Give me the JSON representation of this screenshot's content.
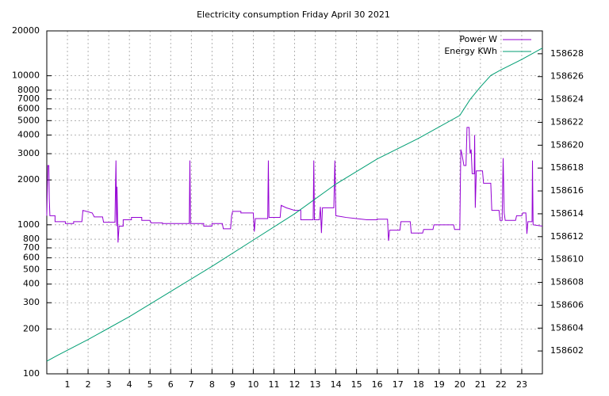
{
  "chart_data": {
    "type": "line",
    "title": "Electricity consumption Friday April 30 2021",
    "xlim": [
      0,
      24
    ],
    "xticks": [
      1,
      2,
      3,
      4,
      5,
      6,
      7,
      8,
      9,
      10,
      11,
      12,
      13,
      14,
      15,
      16,
      17,
      18,
      19,
      20,
      21,
      22,
      23
    ],
    "ylim": [
      100,
      20000
    ],
    "log_y": true,
    "yticks": [
      100,
      200,
      300,
      400,
      500,
      600,
      700,
      800,
      1000,
      2000,
      3000,
      4000,
      5000,
      6000,
      7000,
      8000,
      10000,
      20000
    ],
    "y2lim": [
      158600,
      158630
    ],
    "y2ticks": [
      158602,
      158604,
      158606,
      158608,
      158610,
      158612,
      158614,
      158616,
      158618,
      158620,
      158622,
      158624,
      158626,
      158628
    ],
    "grid": true,
    "legend": "top-right",
    "series": [
      {
        "name": "Power W",
        "color": "#9400d3",
        "x": [
          0,
          0.05,
          0.1,
          0.12,
          0.15,
          0.4,
          0.4,
          0.9,
          0.9,
          1.3,
          1.3,
          1.7,
          1.75,
          2.2,
          2.3,
          2.7,
          2.75,
          3.3,
          3.35,
          3.38,
          3.4,
          3.45,
          3.5,
          3.7,
          3.7,
          4.1,
          4.1,
          4.6,
          4.6,
          5.0,
          5.05,
          5.6,
          5.6,
          6.9,
          6.93,
          6.96,
          7.6,
          7.6,
          8.0,
          8.0,
          8.5,
          8.55,
          8.9,
          8.95,
          9.0,
          9.4,
          9.4,
          10.0,
          10.05,
          10.1,
          10.7,
          10.73,
          10.76,
          11.3,
          11.35,
          11.6,
          12.0,
          12.3,
          12.3,
          12.9,
          12.93,
          12.96,
          13.2,
          13.25,
          13.3,
          13.35,
          13.9,
          13.95,
          14.0,
          14.5,
          15.0,
          15.5,
          16.0,
          16.0,
          16.5,
          16.55,
          16.6,
          17.1,
          17.15,
          17.6,
          17.65,
          18.2,
          18.25,
          18.7,
          18.75,
          19.7,
          19.75,
          20.0,
          20.05,
          20.1,
          20.2,
          20.3,
          20.35,
          20.45,
          20.5,
          20.55,
          20.6,
          20.7,
          20.72,
          20.75,
          20.8,
          21.1,
          21.15,
          21.5,
          21.55,
          21.9,
          21.95,
          22.05,
          22.1,
          22.15,
          22.2,
          22.7,
          22.75,
          23.0,
          23.05,
          23.2,
          23.25,
          23.3,
          23.5,
          23.52,
          23.55,
          24
        ],
        "values": [
          1150,
          2500,
          2500,
          1500,
          1150,
          1150,
          1050,
          1050,
          1020,
          1020,
          1050,
          1050,
          1250,
          1200,
          1130,
          1130,
          1040,
          1040,
          2700,
          980,
          1800,
          760,
          980,
          980,
          1080,
          1080,
          1120,
          1120,
          1070,
          1070,
          1030,
          1030,
          1020,
          1020,
          2700,
          1020,
          1020,
          980,
          980,
          1020,
          1020,
          940,
          940,
          1150,
          1230,
          1230,
          1200,
          1200,
          900,
          1100,
          1100,
          2700,
          1120,
          1120,
          1350,
          1300,
          1250,
          1250,
          1080,
          1080,
          2700,
          1080,
          1080,
          1320,
          880,
          1300,
          1300,
          2700,
          1150,
          1120,
          1100,
          1080,
          1080,
          1090,
          1090,
          780,
          920,
          920,
          1050,
          1050,
          880,
          880,
          930,
          930,
          1000,
          1000,
          930,
          930,
          3200,
          3000,
          2500,
          2500,
          4500,
          4500,
          3000,
          3200,
          2200,
          2200,
          4000,
          1300,
          2300,
          2300,
          1900,
          1900,
          1250,
          1250,
          1070,
          1070,
          2800,
          1200,
          1070,
          1070,
          1150,
          1150,
          1200,
          1200,
          870,
          1050,
          1050,
          2700,
          1000,
          980
        ]
      },
      {
        "name": "Energy KWh",
        "color": "#009e73",
        "axis": "y2",
        "x": [
          0,
          0.5,
          2,
          4,
          6,
          8,
          10,
          12,
          14,
          16,
          18,
          20,
          20.5,
          21,
          21.5,
          22,
          23,
          24
        ],
        "values": [
          158601.1,
          158601.6,
          158603.0,
          158605.0,
          158607.2,
          158609.4,
          158611.7,
          158614.0,
          158616.6,
          158618.8,
          158620.6,
          158622.6,
          158624.0,
          158625.1,
          158626.1,
          158626.6,
          158627.5,
          158628.5
        ]
      }
    ]
  }
}
